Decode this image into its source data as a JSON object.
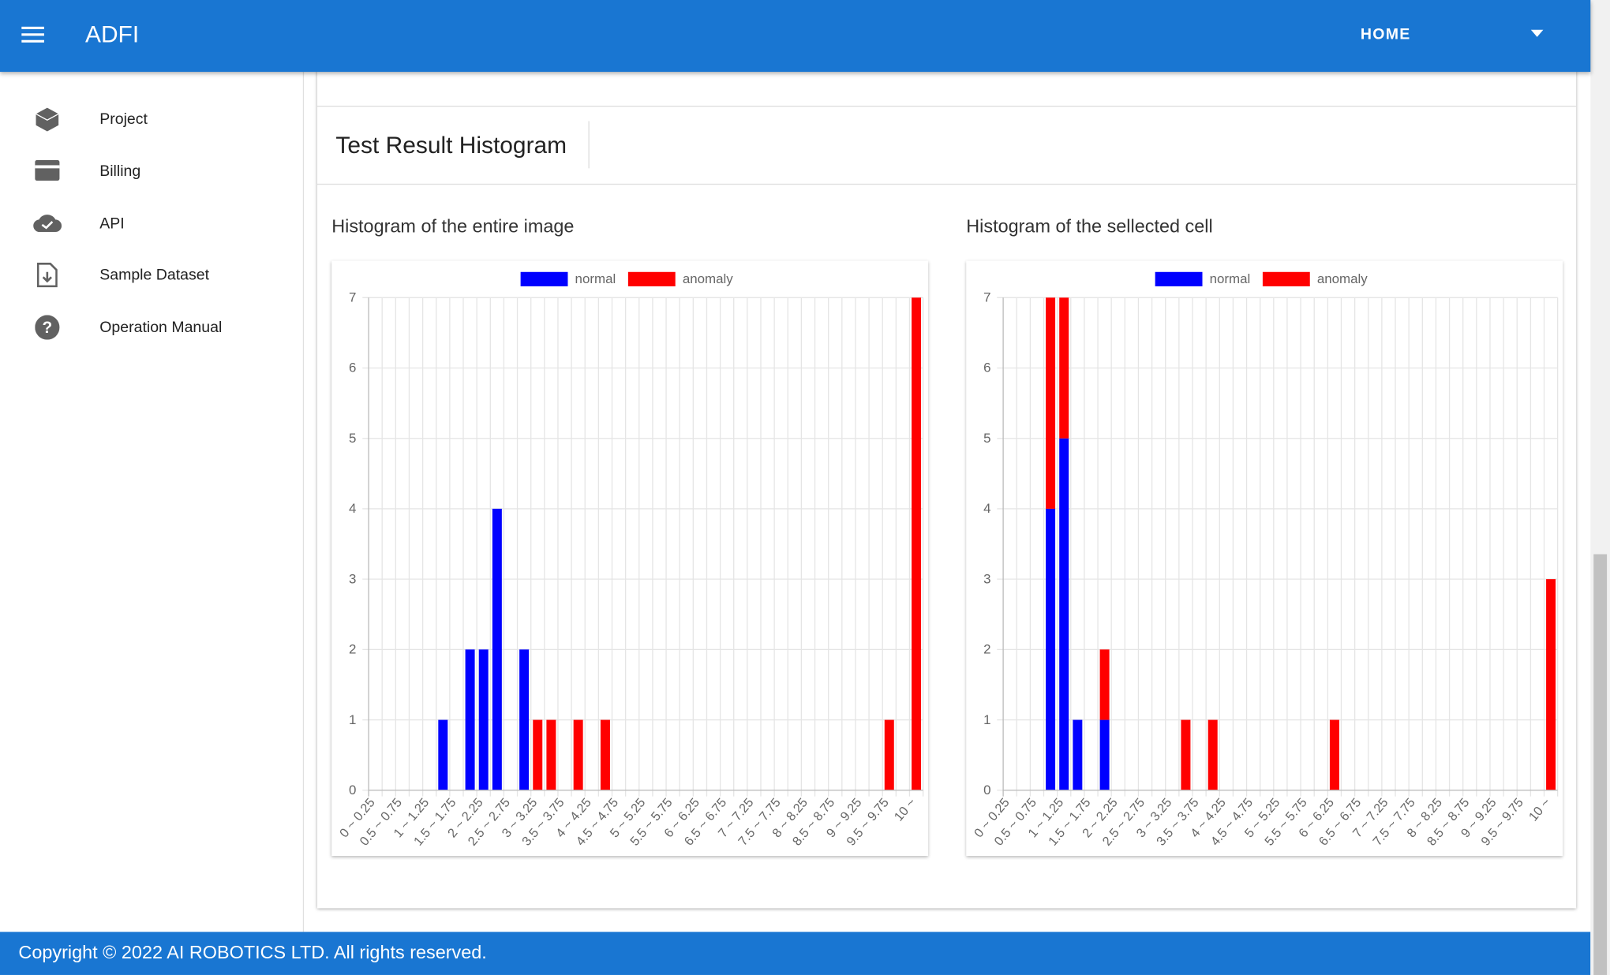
{
  "header": {
    "title": "ADFI",
    "menu": "HOME"
  },
  "sidebar": {
    "items": [
      "Project",
      "Billing",
      "API",
      "Sample Dataset",
      "Operation Manual"
    ]
  },
  "card": {
    "title": "Test Result Histogram"
  },
  "footer": {
    "text": "Copyright © 2022 AI ROBOTICS LTD. All rights reserved."
  },
  "chart_data": [
    {
      "type": "bar",
      "title": "Histogram of the entire image",
      "stacked": true,
      "grid": true,
      "legend": "top",
      "categories": [
        "0 ~ 0.25",
        null,
        "0.5 ~ 0.75",
        null,
        "1 ~ 1.25",
        null,
        "1.5 ~ 1.75",
        null,
        "2 ~ 2.25",
        null,
        "2.5 ~ 2.75",
        null,
        "3 ~ 3.25",
        null,
        "3.5 ~ 3.75",
        null,
        "4 ~ 4.25",
        null,
        "4.5 ~ 4.75",
        null,
        "5 ~ 5.25",
        null,
        "5.5 ~ 5.75",
        null,
        "6 ~ 6.25",
        null,
        "6.5 ~ 6.75",
        null,
        "7 ~ 7.25",
        null,
        "7.5 ~ 7.75",
        null,
        "8 ~ 8.25",
        null,
        "8.5 ~ 8.75",
        null,
        "9 ~ 9.25",
        null,
        "9.5 ~ 9.75",
        null,
        "10 ~"
      ],
      "series": [
        {
          "name": "normal",
          "color": "#0000ff",
          "values": [
            0,
            0,
            0,
            0,
            0,
            1,
            0,
            2,
            2,
            4,
            0,
            2,
            0,
            0,
            0,
            0,
            0,
            0,
            0,
            0,
            0,
            0,
            0,
            0,
            0,
            0,
            0,
            0,
            0,
            0,
            0,
            0,
            0,
            0,
            0,
            0,
            0,
            0,
            0,
            0,
            0
          ]
        },
        {
          "name": "anomaly",
          "color": "#ff0000",
          "values": [
            0,
            0,
            0,
            0,
            0,
            0,
            0,
            0,
            0,
            0,
            0,
            0,
            1,
            1,
            0,
            1,
            0,
            1,
            0,
            0,
            0,
            0,
            0,
            0,
            0,
            0,
            0,
            0,
            0,
            0,
            0,
            0,
            0,
            0,
            0,
            0,
            0,
            0,
            1,
            0,
            7
          ]
        }
      ],
      "ylim": [
        0,
        7
      ],
      "yticks": [
        0,
        1,
        2,
        3,
        4,
        5,
        6,
        7
      ]
    },
    {
      "type": "bar",
      "title": "Histogram of the sellected cell",
      "stacked": true,
      "grid": true,
      "legend": "top",
      "categories": [
        "0 ~ 0.25",
        null,
        "0.5 ~ 0.75",
        null,
        "1 ~ 1.25",
        null,
        "1.5 ~ 1.75",
        null,
        "2 ~ 2.25",
        null,
        "2.5 ~ 2.75",
        null,
        "3 ~ 3.25",
        null,
        "3.5 ~ 3.75",
        null,
        "4 ~ 4.25",
        null,
        "4.5 ~ 4.75",
        null,
        "5 ~ 5.25",
        null,
        "5.5 ~ 5.75",
        null,
        "6 ~ 6.25",
        null,
        "6.5 ~ 6.75",
        null,
        "7 ~ 7.25",
        null,
        "7.5 ~ 7.75",
        null,
        "8 ~ 8.25",
        null,
        "8.5 ~ 8.75",
        null,
        "9 ~ 9.25",
        null,
        "9.5 ~ 9.75",
        null,
        "10 ~"
      ],
      "series": [
        {
          "name": "normal",
          "color": "#0000ff",
          "values": [
            0,
            0,
            0,
            4,
            5,
            1,
            0,
            1,
            0,
            0,
            0,
            0,
            0,
            0,
            0,
            0,
            0,
            0,
            0,
            0,
            0,
            0,
            0,
            0,
            0,
            0,
            0,
            0,
            0,
            0,
            0,
            0,
            0,
            0,
            0,
            0,
            0,
            0,
            0,
            0,
            0
          ]
        },
        {
          "name": "anomaly",
          "color": "#ff0000",
          "values": [
            0,
            0,
            0,
            3,
            2,
            0,
            0,
            1,
            0,
            0,
            0,
            0,
            0,
            1,
            0,
            1,
            0,
            0,
            0,
            0,
            0,
            0,
            0,
            0,
            1,
            0,
            0,
            0,
            0,
            0,
            0,
            0,
            0,
            0,
            0,
            0,
            0,
            0,
            0,
            0,
            3
          ]
        }
      ],
      "ylim": [
        0,
        7
      ],
      "yticks": [
        0,
        1,
        2,
        3,
        4,
        5,
        6,
        7
      ]
    }
  ]
}
